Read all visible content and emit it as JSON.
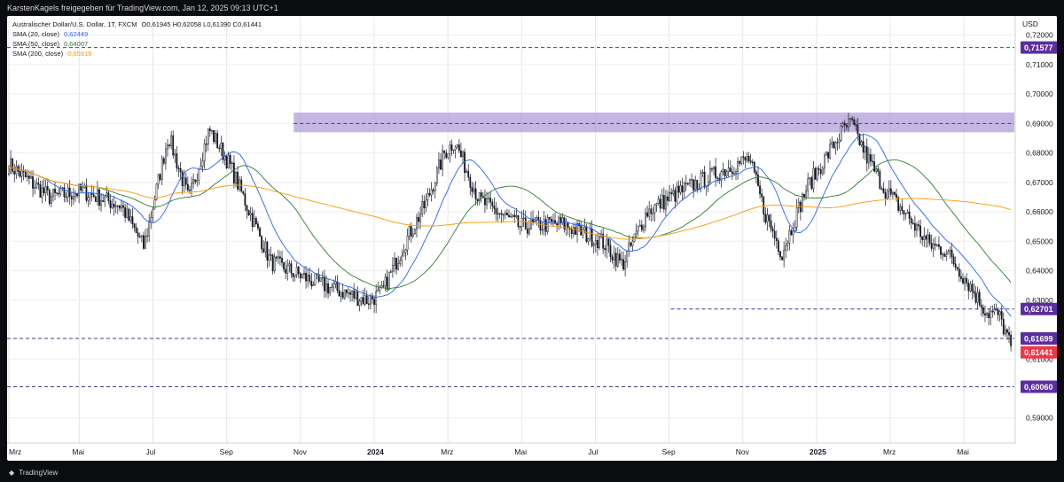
{
  "header": {
    "shared_by": "KarstenKagels freigegeben für TradingView.com, Jan 12, 2025 09:13 UTC+1"
  },
  "legend": {
    "symbol": "Australischer Dollar/U.S. Dollar, 1T, FXCM",
    "ohlc": "O0,61945  H0,62058  L0,61390  C0,61441",
    "sma20_label": "SMA (20, close)",
    "sma20_value": "0,62449",
    "sma50_label": "SMA (50, close)",
    "sma50_value": "0,64007",
    "sma200_label": "SMA (200, close)",
    "sma200_value": "0,65919"
  },
  "footer": {
    "brand": "TradingView"
  },
  "colors": {
    "up": "#131722",
    "down": "#131722",
    "sma20": "#2962ff",
    "sma50": "#2e7d32",
    "sma200": "#ff9800",
    "level_tag": "#5b2d9e",
    "last_tag": "#f23645",
    "zone": "#b39ddb",
    "dashed": "#3f3f8f"
  },
  "chart_data": {
    "type": "candlestick",
    "currency": "USD",
    "ylim": [
      0.5815,
      0.7265
    ],
    "y_ticks": [
      "0,72000",
      "0,71000",
      "0,70000",
      "0,69000",
      "0,68000",
      "0,67000",
      "0,66000",
      "0,65000",
      "0,64000",
      "0,63000",
      "0,61000",
      "0,59000"
    ],
    "y_tick_values": [
      0.72,
      0.71,
      0.7,
      0.69,
      0.68,
      0.67,
      0.66,
      0.65,
      0.64,
      0.63,
      0.61,
      0.59
    ],
    "x_labels": [
      "Mrz",
      "Mai",
      "Jul",
      "Sep",
      "Nov",
      "2024",
      "Mrz",
      "Mai",
      "Jul",
      "Sep",
      "Nov",
      "2025",
      "Mrz",
      "Mai"
    ],
    "x_label_index": [
      0,
      42,
      86,
      130,
      174,
      218,
      262,
      306,
      350,
      394,
      438,
      482,
      526,
      570
    ],
    "x_bold": [
      "2024",
      "2025"
    ],
    "resistance_zone": [
      0.687,
      0.6937
    ],
    "levels": [
      {
        "value": 0.71577,
        "label": "0,71577",
        "line": "dashed"
      },
      {
        "value": 0.62701,
        "label": "0,62701",
        "line": "dashed-partial"
      },
      {
        "value": 0.61699,
        "label": "0,61699",
        "line": "dashed"
      },
      {
        "value": 0.6006,
        "label": "0,60060",
        "line": "dashed"
      }
    ],
    "last_price": {
      "value": 0.61441,
      "label": "0,61441"
    },
    "anchors": [
      [
        0,
        0.676
      ],
      [
        20,
        0.665
      ],
      [
        36,
        0.667
      ],
      [
        55,
        0.662
      ],
      [
        66,
        0.648
      ],
      [
        78,
        0.686
      ],
      [
        88,
        0.664
      ],
      [
        98,
        0.688
      ],
      [
        108,
        0.676
      ],
      [
        128,
        0.643
      ],
      [
        150,
        0.636
      ],
      [
        175,
        0.63
      ],
      [
        182,
        0.632
      ],
      [
        194,
        0.65
      ],
      [
        204,
        0.663
      ],
      [
        213,
        0.68
      ],
      [
        218,
        0.684
      ],
      [
        230,
        0.664
      ],
      [
        250,
        0.655
      ],
      [
        270,
        0.656
      ],
      [
        290,
        0.65
      ],
      [
        300,
        0.642
      ],
      [
        312,
        0.66
      ],
      [
        326,
        0.666
      ],
      [
        340,
        0.671
      ],
      [
        352,
        0.675
      ],
      [
        362,
        0.678
      ],
      [
        370,
        0.659
      ],
      [
        378,
        0.646
      ],
      [
        390,
        0.668
      ],
      [
        400,
        0.679
      ],
      [
        408,
        0.688
      ],
      [
        412,
        0.69
      ],
      [
        420,
        0.678
      ],
      [
        428,
        0.668
      ],
      [
        440,
        0.658
      ],
      [
        450,
        0.649
      ],
      [
        458,
        0.647
      ],
      [
        468,
        0.637
      ],
      [
        478,
        0.626
      ],
      [
        484,
        0.625
      ],
      [
        488,
        0.618
      ],
      [
        490,
        0.614
      ]
    ],
    "series": [
      {
        "name": "SMA (20, close)",
        "value": 0.62449
      },
      {
        "name": "SMA (50, close)",
        "value": 0.64007
      },
      {
        "name": "SMA (200, close)",
        "value": 0.65919
      }
    ]
  }
}
